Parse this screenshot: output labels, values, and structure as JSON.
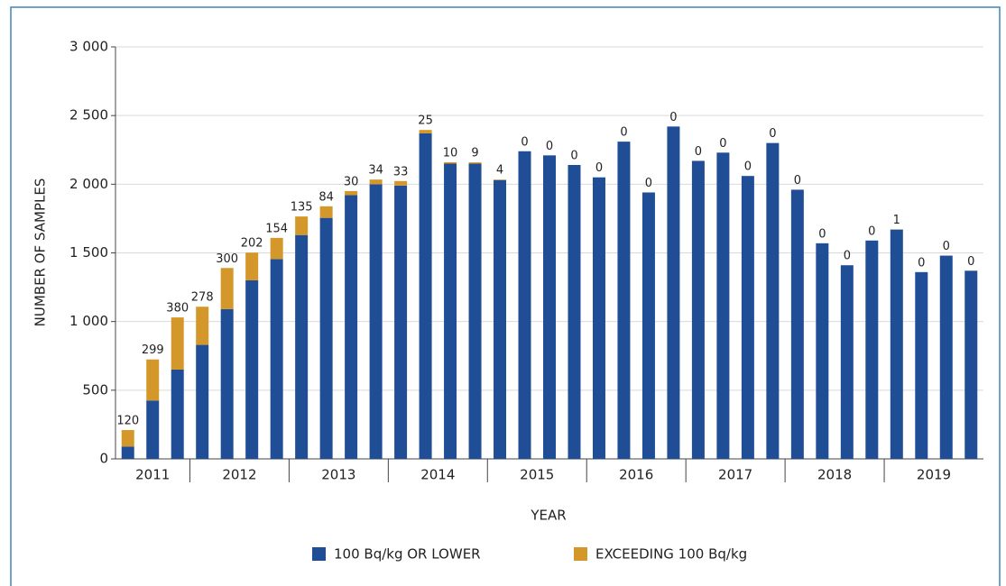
{
  "chart_data": {
    "type": "stacked_bar",
    "y_label": "NUMBER OF SAMPLES",
    "x_label": "YEAR",
    "groups": [
      {
        "label": "2011",
        "bars": 3
      },
      {
        "label": "2012",
        "bars": 4
      },
      {
        "label": "2013",
        "bars": 4
      },
      {
        "label": "2014",
        "bars": 4
      },
      {
        "label": "2015",
        "bars": 4
      },
      {
        "label": "2016",
        "bars": 4
      },
      {
        "label": "2017",
        "bars": 4
      },
      {
        "label": "2018",
        "bars": 4
      },
      {
        "label": "2019",
        "bars": 4
      }
    ],
    "series": [
      {
        "name": "100 Bq/kg OR LOWER",
        "color": "#1f4e96",
        "values": [
          90,
          425,
          650,
          830,
          1090,
          1300,
          1455,
          1630,
          1755,
          1920,
          2000,
          1990,
          2370,
          2150,
          2150,
          2030,
          2240,
          2210,
          2140,
          2050,
          2310,
          1940,
          2420,
          2170,
          2230,
          2060,
          2300,
          1960,
          1570,
          1410,
          1590,
          1670,
          1360,
          1480,
          1370
        ]
      },
      {
        "name": "EXCEEDING 100 Bq/kg",
        "color": "#d4972a",
        "values": [
          120,
          299,
          380,
          278,
          300,
          202,
          154,
          135,
          84,
          30,
          34,
          33,
          25,
          10,
          9,
          4,
          0,
          0,
          0,
          0,
          0,
          0,
          0,
          0,
          0,
          0,
          0,
          0,
          0,
          0,
          0,
          1,
          0,
          0,
          0
        ]
      }
    ],
    "ylim": [
      0,
      3000
    ],
    "yticks": [
      0,
      {
        "value": 500,
        "label": "500"
      },
      {
        "value": 1000,
        "label": "1 000"
      },
      {
        "value": 1500,
        "label": "1 500"
      },
      {
        "value": 2000,
        "label": "2 000"
      },
      {
        "value": 2500,
        "label": "2 500"
      },
      {
        "value": 3000,
        "label": "3 000"
      }
    ],
    "grid": true
  }
}
